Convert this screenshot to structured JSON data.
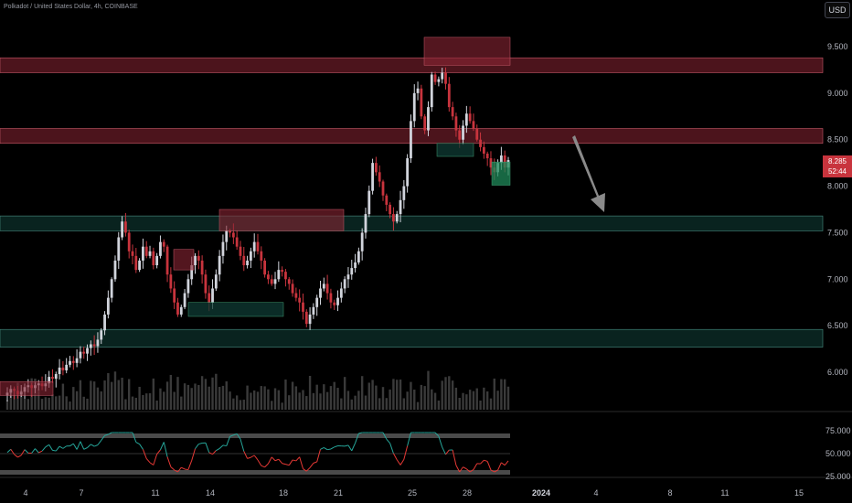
{
  "header": {
    "symbol_title": "Polkadot / United States Dollar, 4h, COINBASE",
    "currency": "USD"
  },
  "last_price": {
    "value": "8.285",
    "countdown": "52:44",
    "color": "#c8343d"
  },
  "colors": {
    "up": "#d1d4dc",
    "down": "#c8343d",
    "supply_zone": "#8b2433",
    "demand_zone": "#0f3b34",
    "rsi_above": "#26a69a",
    "rsi_below": "#e53935",
    "volume": "#3a3a3a"
  },
  "chart_data": {
    "type": "candlestick",
    "timeframe": "4h",
    "x_tick_labels": [
      "4",
      "7",
      "11",
      "14",
      "18",
      "21",
      "25",
      "28",
      "2024",
      "4",
      "8",
      "11",
      "15"
    ],
    "price_axis": {
      "ticks": [
        6.0,
        6.5,
        7.0,
        7.5,
        8.0,
        8.5,
        9.0,
        9.5
      ],
      "tick_labels": [
        "6.000",
        "6.500",
        "7.000",
        "7.500",
        "8.000",
        "8.500",
        "9.000",
        "9.500"
      ],
      "ylim": [
        5.6,
        10.0
      ]
    },
    "rsi_axis": {
      "tick_labels": [
        "75.000",
        "50.000",
        "25.000"
      ],
      "ticks": [
        75,
        50,
        25
      ],
      "band": [
        30,
        70
      ],
      "midline": 50
    },
    "horizontal_zones": [
      {
        "kind": "supply",
        "low": 9.22,
        "high": 9.38
      },
      {
        "kind": "supply",
        "low": 8.46,
        "high": 8.62
      },
      {
        "kind": "demand",
        "low": 7.52,
        "high": 7.68
      },
      {
        "kind": "demand",
        "low": 6.27,
        "high": 6.46
      }
    ],
    "annotation_boxes": [
      {
        "kind": "supply",
        "x_start": "Dec 5 04:00",
        "x_end": "Dec 6 08:00",
        "low": 5.75,
        "high": 5.9
      },
      {
        "kind": "supply",
        "x_start": "Dec 12 16:00",
        "x_end": "Dec 13 12:00",
        "low": 7.1,
        "high": 7.32
      },
      {
        "kind": "supply",
        "x_start": "Dec 14 12:00",
        "x_end": "Dec 21 00:00",
        "low": 7.52,
        "high": 7.75
      },
      {
        "kind": "demand",
        "x_start": "Dec 13 16:00",
        "x_end": "Dec 18 12:00",
        "low": 6.6,
        "high": 6.75
      },
      {
        "kind": "supply",
        "x_start": "Dec 25 16:00",
        "x_end": "Dec 30 00:00",
        "low": 9.3,
        "high": 9.6
      },
      {
        "kind": "demand",
        "x_start": "Dec 26 12:00",
        "x_end": "Dec 28 00:00",
        "low": 8.32,
        "high": 8.46
      },
      {
        "kind": "demand",
        "x_start": "Dec 29 12:00",
        "x_end": "Dec 30 00:00",
        "low": 8.01,
        "high": 8.26
      }
    ],
    "projection_arrow": {
      "from": {
        "x": "Jan 2",
        "y": 8.55
      },
      "to": {
        "x": "Jan 4",
        "y": 7.75
      }
    },
    "close_series": [
      5.78,
      5.82,
      5.8,
      5.76,
      5.79,
      5.84,
      5.86,
      5.83,
      5.86,
      5.88,
      5.85,
      5.88,
      5.95,
      5.93,
      5.98,
      6.05,
      6.02,
      6.08,
      6.12,
      6.1,
      6.15,
      6.22,
      6.2,
      6.26,
      6.3,
      6.28,
      6.35,
      6.45,
      6.62,
      6.8,
      7.0,
      7.2,
      7.45,
      7.62,
      7.5,
      7.3,
      7.25,
      7.1,
      7.2,
      7.35,
      7.25,
      7.3,
      7.15,
      7.25,
      7.4,
      7.35,
      7.05,
      6.9,
      6.75,
      6.62,
      6.7,
      6.85,
      7.0,
      7.15,
      7.25,
      7.2,
      7.05,
      6.85,
      6.75,
      6.9,
      7.05,
      7.25,
      7.4,
      7.52,
      7.5,
      7.45,
      7.35,
      7.25,
      7.15,
      7.2,
      7.3,
      7.4,
      7.3,
      7.2,
      7.05,
      7.0,
      6.95,
      7.0,
      7.1,
      7.08,
      7.0,
      6.95,
      6.85,
      6.8,
      6.75,
      6.65,
      6.52,
      6.62,
      6.7,
      6.8,
      6.9,
      6.95,
      6.85,
      6.75,
      6.72,
      6.8,
      6.9,
      7.0,
      7.05,
      7.12,
      7.18,
      7.3,
      7.5,
      7.7,
      7.95,
      8.25,
      8.15,
      8.05,
      7.9,
      7.8,
      7.7,
      7.62,
      7.7,
      7.85,
      8.0,
      8.3,
      8.7,
      9.0,
      9.05,
      8.75,
      8.6,
      8.85,
      9.2,
      9.12,
      9.15,
      9.22,
      9.1,
      8.85,
      8.75,
      8.6,
      8.5,
      8.65,
      8.78,
      8.7,
      8.62,
      8.5,
      8.42,
      8.35,
      8.3,
      8.2,
      8.15,
      8.25,
      8.33,
      8.2,
      8.28
    ]
  }
}
